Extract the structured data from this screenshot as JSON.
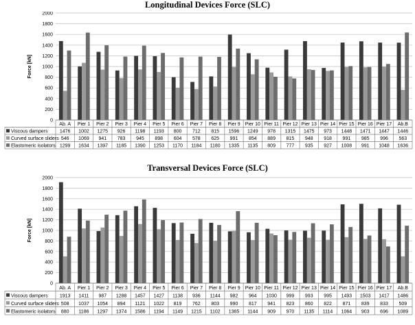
{
  "colors": {
    "viscous": "#3a3a3a",
    "curved": "#9a9a9a",
    "elastomeric": "#6c6c6c",
    "grid": "#bdbdbd",
    "axis": "#7f7f7f",
    "text": "#000000"
  },
  "chart_data": [
    {
      "type": "bar",
      "title": "Longitudinal Devices Force (SLC)",
      "ylabel": "Force [kN]",
      "xlabel": "",
      "ylim": [
        0,
        2000
      ],
      "yticks": [
        "0",
        "200",
        "400",
        "600",
        "800",
        "1000",
        "1200",
        "1400",
        "1600",
        "1800",
        "2000"
      ],
      "grid": true,
      "legend": "data-table-rows",
      "categories": [
        "Ab. A",
        "Pier 1",
        "Pier 2",
        "Pier 3",
        "Pier 4",
        "Pier 5",
        "Pier 6",
        "Pier 7",
        "Pier 8",
        "Pier 9",
        "Pier 10",
        "Pier 11",
        "Pier 12",
        "Pier 13",
        "Pier 14",
        "Pier 15",
        "Pier 16",
        "Pier 17",
        "Ab.B"
      ],
      "series": [
        {
          "name": "Viscous dampers",
          "values": [
            1476,
            1002,
            1275,
            926,
            1198,
            1193,
            800,
            712,
            815,
            1596,
            1249,
            978,
            1315,
            1475,
            973,
            1448,
            1471,
            1447,
            1446
          ]
        },
        {
          "name": "Curved surface sliders",
          "values": [
            546,
            1069,
            941,
            783,
            945,
            898,
            604,
            578,
            625,
            991,
            854,
            889,
            815,
            948,
            918,
            991,
            985,
            996,
            563
          ]
        },
        {
          "name": "Elastomeric isolators",
          "values": [
            1299,
            1634,
            1397,
            1185,
            1390,
            1253,
            1170,
            1184,
            1180,
            1335,
            1135,
            809,
            777,
            935,
            927,
            1008,
            991,
            1048,
            1636
          ]
        }
      ]
    },
    {
      "type": "bar",
      "title": "Transversal Devices Force (SLC)",
      "ylabel": "Force [kN]",
      "xlabel": "",
      "ylim": [
        0,
        2000
      ],
      "yticks": [
        "0",
        "200",
        "400",
        "600",
        "800",
        "1000",
        "1200",
        "1400",
        "1600",
        "1800",
        "2000"
      ],
      "grid": true,
      "legend": "data-table-rows",
      "categories": [
        "Ab. A",
        "Pier 1",
        "Pier 2",
        "Pier 3",
        "Pier 4",
        "Pier 5",
        "Pier 6",
        "Pier 7",
        "Pier 8",
        "Pier 9",
        "Pier 10",
        "Pier 11",
        "Pier 12",
        "Pier 13",
        "Pier 14",
        "Pier 15",
        "Pier 16",
        "Pier 17",
        "Ab.B"
      ],
      "series": [
        {
          "name": "Viscous dampers",
          "values": [
            1913,
            1411,
            987,
            1288,
            1457,
            1427,
            1138,
            936,
            1144,
            982,
            964,
            1030,
            999,
            993,
            995,
            1493,
            1503,
            1417,
            1486
          ]
        },
        {
          "name": "Curved surface sliders",
          "values": [
            508,
            1037,
            1054,
            894,
            1121,
            1022,
            819,
            762,
            803,
            990,
            817,
            941,
            823,
            860,
            822,
            871,
            839,
            833,
            509
          ]
        },
        {
          "name": "Elastomeric isolators",
          "values": [
            880,
            1186,
            1297,
            1374,
            1586,
            1194,
            1149,
            1215,
            1102,
            1365,
            1144,
            909,
            970,
            1135,
            1114,
            1064,
            903,
            696,
            1089
          ]
        }
      ]
    }
  ]
}
